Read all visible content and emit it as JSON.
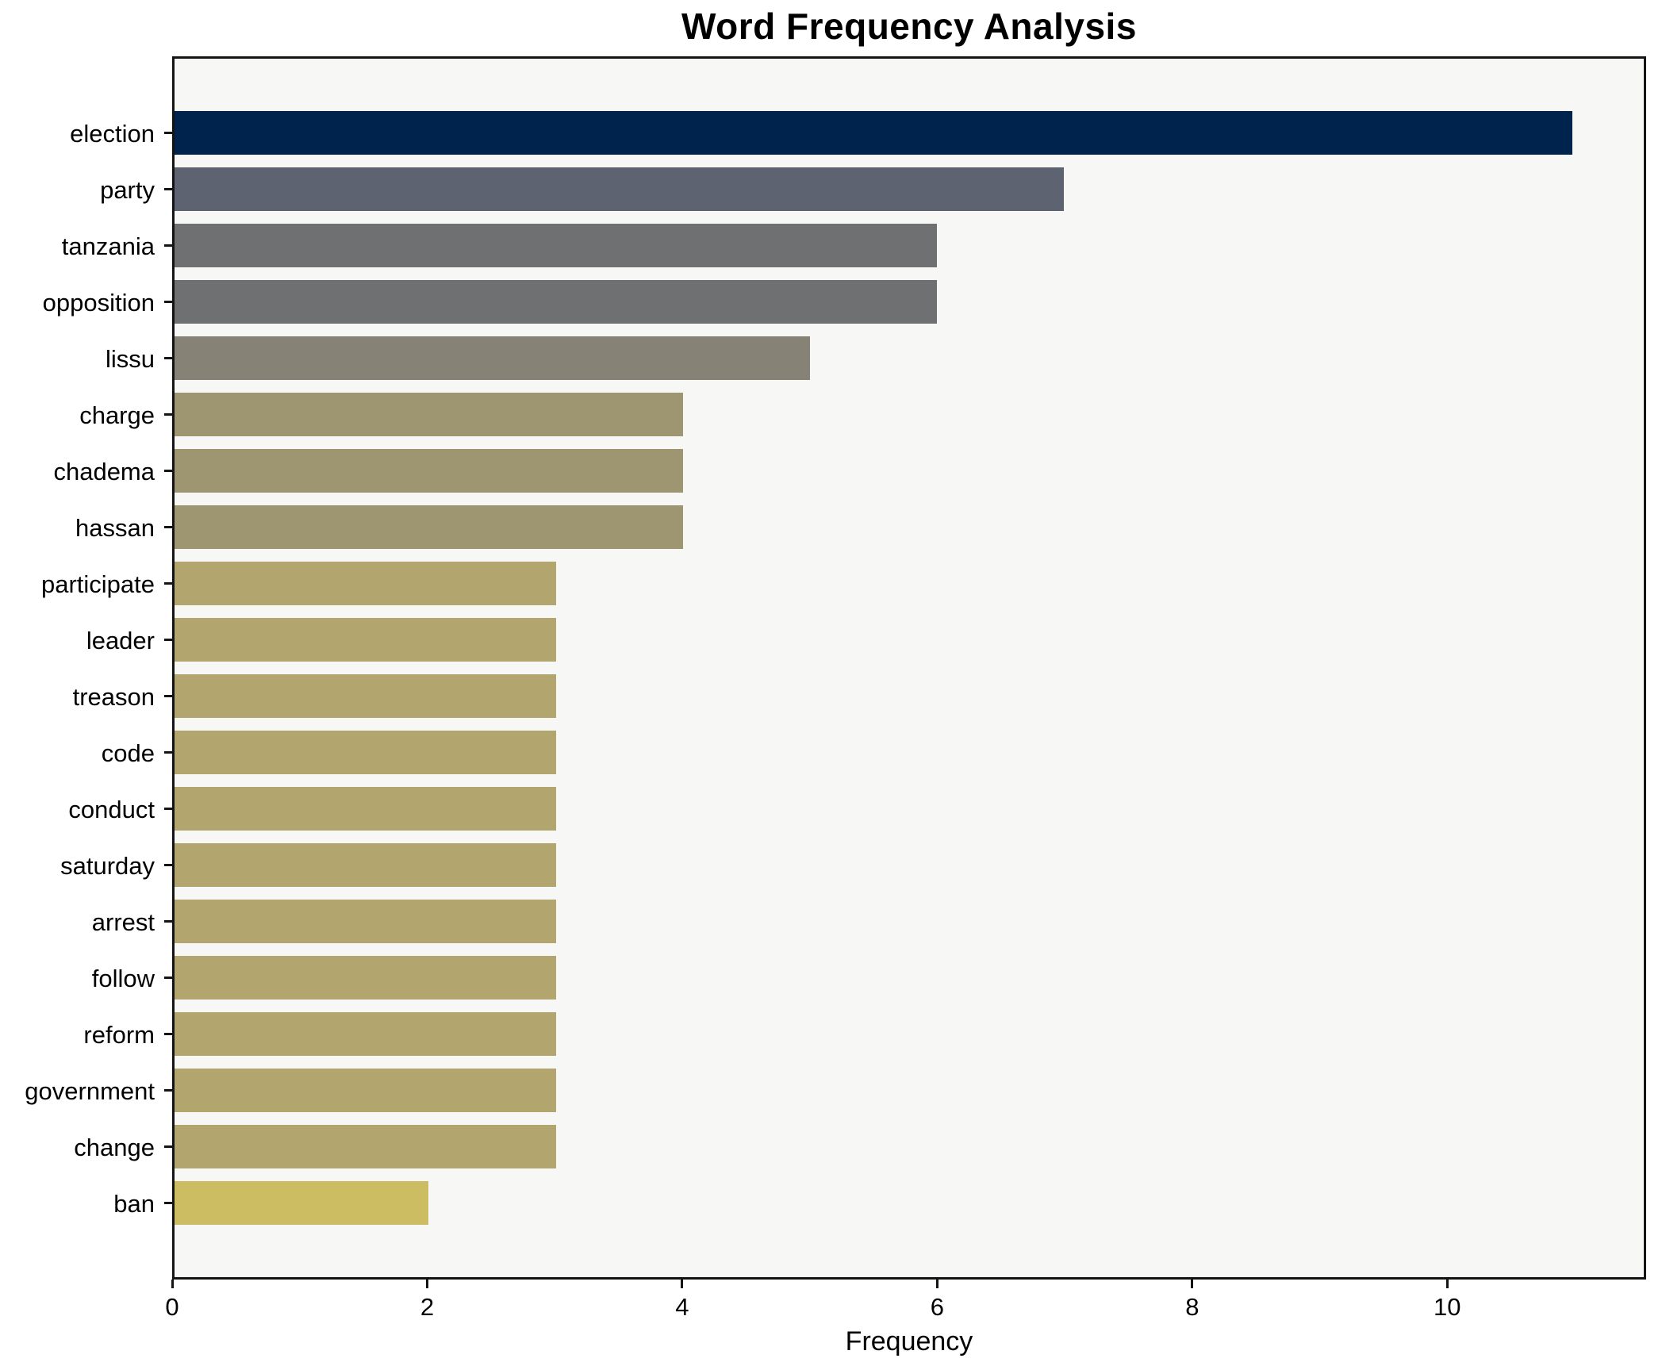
{
  "chart_data": {
    "type": "bar",
    "orientation": "horizontal",
    "title": "Word Frequency Analysis",
    "xlabel": "Frequency",
    "ylabel": "",
    "categories": [
      "election",
      "party",
      "tanzania",
      "opposition",
      "lissu",
      "charge",
      "chadema",
      "hassan",
      "participate",
      "leader",
      "treason",
      "code",
      "conduct",
      "saturday",
      "arrest",
      "follow",
      "reform",
      "government",
      "change",
      "ban"
    ],
    "values": [
      11,
      7,
      6,
      6,
      5,
      4,
      4,
      4,
      3,
      3,
      3,
      3,
      3,
      3,
      3,
      3,
      3,
      3,
      3,
      2
    ],
    "bar_colors": [
      "#00234e",
      "#5d6370",
      "#6f7072",
      "#6f7072",
      "#868376",
      "#9e9671",
      "#9e9671",
      "#9e9671",
      "#b2a56e",
      "#b2a56e",
      "#b2a56e",
      "#b2a56e",
      "#b2a56e",
      "#b2a56e",
      "#b2a56e",
      "#b2a56e",
      "#b2a56e",
      "#b2a56e",
      "#b2a56e",
      "#ccbd62"
    ],
    "xlim": [
      0,
      11.56
    ],
    "xticks": [
      0,
      2,
      4,
      6,
      8,
      10
    ],
    "grid": false,
    "legend_position": "none",
    "plot_background": "#f7f7f6",
    "figure_background": "#ffffff",
    "colormap_note": "cividis colormap, darker = higher frequency"
  }
}
